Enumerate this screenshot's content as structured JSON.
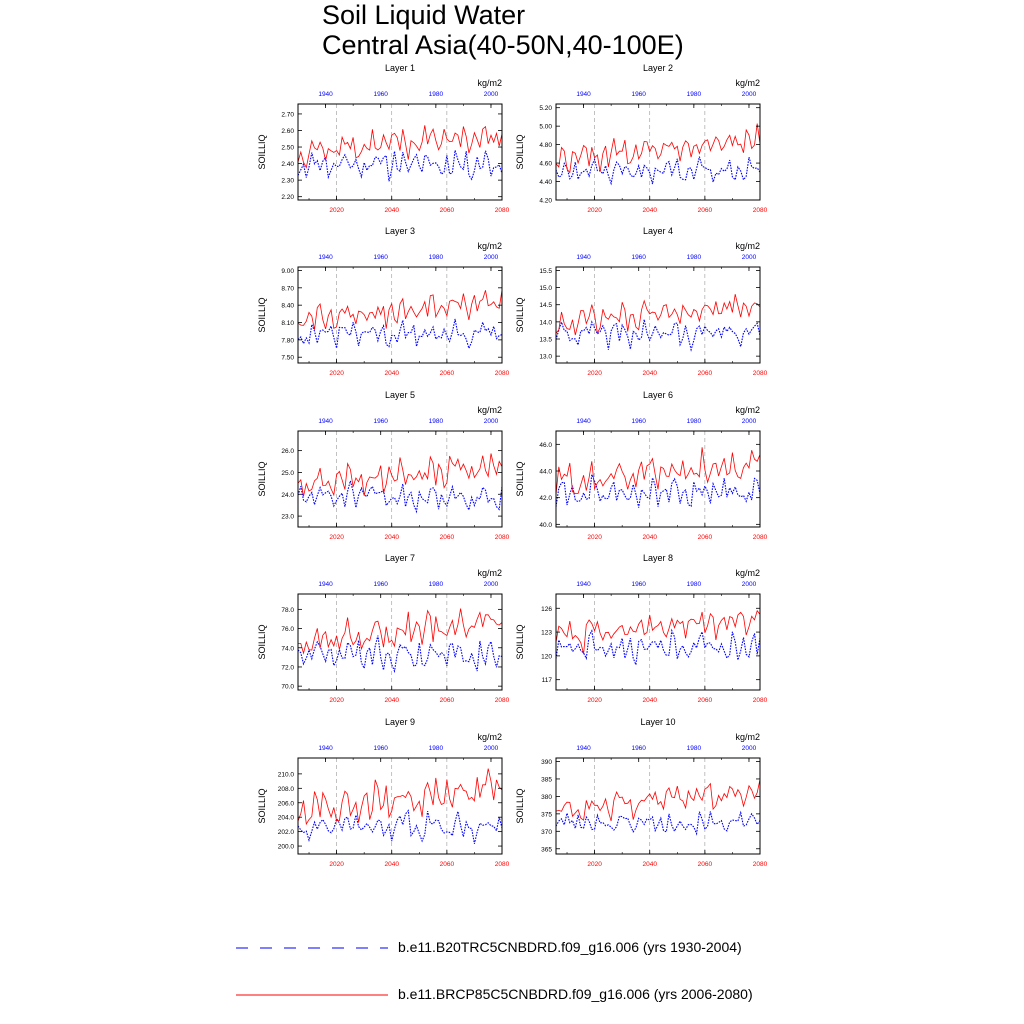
{
  "title_lines": [
    "Soil Liquid Water",
    "Central Asia(40-50N,40-100E)"
  ],
  "colors": {
    "historical": "#0000ff",
    "future": "#ff0000",
    "axis": "#000000",
    "refline": "#999999"
  },
  "legend": [
    {
      "label": "b.e11.B20TRC5CNBDRD.f09_g16.006 (yrs 1930-2004)",
      "color": "#0000ff",
      "style": "dashed"
    },
    {
      "label": "b.e11.BRCP85C5CNBDRD.f09_g16.006 (yrs 2006-2080)",
      "color": "#ff0000",
      "style": "solid"
    }
  ],
  "chart_data": [
    {
      "type": "line",
      "title": "Layer 1",
      "units": "kg/m2",
      "ylabel": "SOILLIQ",
      "ylim": [
        2.18,
        2.76
      ],
      "yticks": [
        2.2,
        2.3,
        2.4,
        2.5,
        2.6,
        2.7
      ],
      "ydecimals": 2,
      "x_bottom_ticks": [
        2020,
        2040,
        2060,
        2080
      ],
      "x_top_ticks": [
        1940,
        1960,
        1980,
        2000
      ],
      "future_years": [
        2006,
        2080
      ],
      "historical_years": [
        1930,
        2004
      ],
      "series": [
        {
          "name": "historical",
          "mean": 2.4,
          "spread": 0.07,
          "trend": 0.0,
          "seed": 11
        },
        {
          "name": "future",
          "mean": 2.47,
          "spread": 0.07,
          "trend": 0.11,
          "seed": 12
        }
      ]
    },
    {
      "type": "line",
      "title": "Layer 2",
      "units": "kg/m2",
      "ylabel": "SOILLIQ",
      "ylim": [
        4.2,
        5.24
      ],
      "yticks": [
        4.2,
        4.4,
        4.6,
        4.8,
        5.0,
        5.2
      ],
      "ydecimals": 2,
      "x_bottom_ticks": [
        2020,
        2040,
        2060,
        2080
      ],
      "x_top_ticks": [
        1940,
        1960,
        1980,
        2000
      ],
      "future_years": [
        2006,
        2080
      ],
      "historical_years": [
        1930,
        2004
      ],
      "series": [
        {
          "name": "historical",
          "mean": 4.52,
          "spread": 0.11,
          "trend": 0.0,
          "seed": 21
        },
        {
          "name": "future",
          "mean": 4.63,
          "spread": 0.12,
          "trend": 0.22,
          "seed": 22
        }
      ]
    },
    {
      "type": "line",
      "title": "Layer 3",
      "units": "kg/m2",
      "ylabel": "SOILLIQ",
      "ylim": [
        7.4,
        9.06
      ],
      "yticks": [
        7.5,
        7.8,
        8.1,
        8.4,
        8.7,
        9.0
      ],
      "ydecimals": 2,
      "x_bottom_ticks": [
        2020,
        2040,
        2060,
        2080
      ],
      "x_top_ticks": [
        1940,
        1960,
        1980,
        2000
      ],
      "future_years": [
        2006,
        2080
      ],
      "historical_years": [
        1930,
        2004
      ],
      "series": [
        {
          "name": "historical",
          "mean": 7.9,
          "spread": 0.17,
          "trend": 0.0,
          "seed": 31
        },
        {
          "name": "future",
          "mean": 8.12,
          "spread": 0.2,
          "trend": 0.35,
          "seed": 32
        }
      ]
    },
    {
      "type": "line",
      "title": "Layer 4",
      "units": "kg/m2",
      "ylabel": "SOILLIQ",
      "ylim": [
        12.8,
        15.6
      ],
      "yticks": [
        13.0,
        13.5,
        14.0,
        14.5,
        15.0,
        15.5
      ],
      "ydecimals": 1,
      "x_bottom_ticks": [
        2020,
        2040,
        2060,
        2080
      ],
      "x_top_ticks": [
        1940,
        1960,
        1980,
        2000
      ],
      "future_years": [
        2006,
        2080
      ],
      "historical_years": [
        1930,
        2004
      ],
      "series": [
        {
          "name": "historical",
          "mean": 13.65,
          "spread": 0.3,
          "trend": 0.0,
          "seed": 41
        },
        {
          "name": "future",
          "mean": 13.95,
          "spread": 0.32,
          "trend": 0.55,
          "seed": 42
        }
      ]
    },
    {
      "type": "line",
      "title": "Layer 5",
      "units": "kg/m2",
      "ylabel": "SOILLIQ",
      "ylim": [
        22.5,
        26.9
      ],
      "yticks": [
        23.0,
        24.0,
        25.0,
        26.0
      ],
      "ydecimals": 1,
      "x_bottom_ticks": [
        2020,
        2040,
        2060,
        2080
      ],
      "x_top_ticks": [
        1940,
        1960,
        1980,
        2000
      ],
      "future_years": [
        2006,
        2080
      ],
      "historical_years": [
        1930,
        2004
      ],
      "series": [
        {
          "name": "historical",
          "mean": 23.9,
          "spread": 0.5,
          "trend": 0.0,
          "seed": 51
        },
        {
          "name": "future",
          "mean": 24.4,
          "spread": 0.55,
          "trend": 0.9,
          "seed": 52
        }
      ]
    },
    {
      "type": "line",
      "title": "Layer 6",
      "units": "kg/m2",
      "ylabel": "SOILLIQ",
      "ylim": [
        39.8,
        47.0
      ],
      "yticks": [
        40.0,
        42.0,
        44.0,
        46.0
      ],
      "ydecimals": 1,
      "x_bottom_ticks": [
        2020,
        2040,
        2060,
        2080
      ],
      "x_top_ticks": [
        1940,
        1960,
        1980,
        2000
      ],
      "future_years": [
        2006,
        2080
      ],
      "historical_years": [
        1930,
        2004
      ],
      "series": [
        {
          "name": "historical",
          "mean": 42.3,
          "spread": 0.9,
          "trend": 0.0,
          "seed": 61
        },
        {
          "name": "future",
          "mean": 43.1,
          "spread": 1.0,
          "trend": 1.6,
          "seed": 62
        }
      ]
    },
    {
      "type": "line",
      "title": "Layer 7",
      "units": "kg/m2",
      "ylabel": "SOILLIQ",
      "ylim": [
        69.6,
        79.6
      ],
      "yticks": [
        70.0,
        72.0,
        74.0,
        76.0,
        78.0
      ],
      "ydecimals": 1,
      "x_bottom_ticks": [
        2020,
        2040,
        2060,
        2080
      ],
      "x_top_ticks": [
        1940,
        1960,
        1980,
        2000
      ],
      "future_years": [
        2006,
        2080
      ],
      "historical_years": [
        1930,
        2004
      ],
      "series": [
        {
          "name": "historical",
          "mean": 73.3,
          "spread": 1.3,
          "trend": 0.0,
          "seed": 71
        },
        {
          "name": "future",
          "mean": 74.6,
          "spread": 1.4,
          "trend": 2.2,
          "seed": 72
        }
      ]
    },
    {
      "type": "line",
      "title": "Layer 8",
      "units": "kg/m2",
      "ylabel": "SOILLIQ",
      "ylim": [
        115.7,
        127.8
      ],
      "yticks": [
        117,
        120,
        123,
        126
      ],
      "ydecimals": 0,
      "x_bottom_ticks": [
        2020,
        2040,
        2060,
        2080
      ],
      "x_top_ticks": [
        1940,
        1960,
        1980,
        2000
      ],
      "future_years": [
        2006,
        2080
      ],
      "historical_years": [
        1930,
        2004
      ],
      "series": [
        {
          "name": "historical",
          "mean": 121.1,
          "spread": 1.5,
          "trend": 0.0,
          "seed": 81
        },
        {
          "name": "future",
          "mean": 122.3,
          "spread": 1.6,
          "trend": 2.8,
          "seed": 82
        }
      ]
    },
    {
      "type": "line",
      "title": "Layer 9",
      "units": "kg/m2",
      "ylabel": "SOILLIQ",
      "ylim": [
        198.9,
        212.2
      ],
      "yticks": [
        200.0,
        202.0,
        204.0,
        206.0,
        208.0,
        210.0
      ],
      "ydecimals": 1,
      "x_bottom_ticks": [
        2020,
        2040,
        2060,
        2080
      ],
      "x_top_ticks": [
        1940,
        1960,
        1980,
        2000
      ],
      "future_years": [
        2006,
        2080
      ],
      "historical_years": [
        1930,
        2004
      ],
      "series": [
        {
          "name": "historical",
          "mean": 202.8,
          "spread": 1.5,
          "trend": 0.0,
          "seed": 91
        },
        {
          "name": "future",
          "mean": 204.6,
          "spread": 2.0,
          "trend": 3.6,
          "seed": 92
        }
      ]
    },
    {
      "type": "line",
      "title": "Layer 10",
      "units": "kg/m2",
      "ylabel": "SOILLIQ",
      "ylim": [
        363.5,
        391.0
      ],
      "yticks": [
        365,
        370,
        375,
        380,
        385,
        390
      ],
      "ydecimals": 0,
      "x_bottom_ticks": [
        2020,
        2040,
        2060,
        2080
      ],
      "x_top_ticks": [
        1940,
        1960,
        1980,
        2000
      ],
      "future_years": [
        2006,
        2080
      ],
      "historical_years": [
        1930,
        2004
      ],
      "series": [
        {
          "name": "historical",
          "mean": 372.5,
          "spread": 2.4,
          "trend": 0.0,
          "seed": 101
        },
        {
          "name": "future",
          "mean": 376.0,
          "spread": 3.2,
          "trend": 6.0,
          "seed": 102
        }
      ]
    }
  ]
}
